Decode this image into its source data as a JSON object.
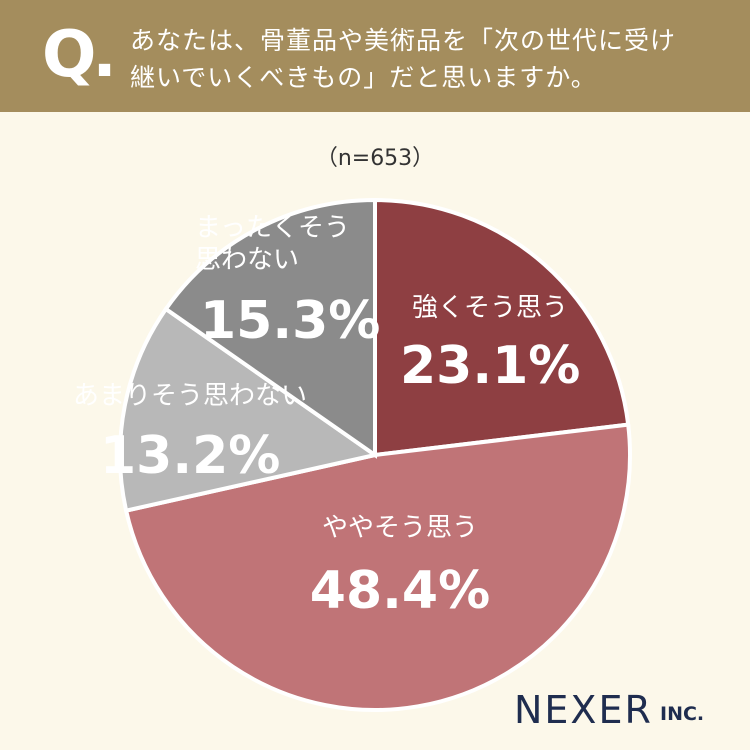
{
  "header": {
    "mark": "Q.",
    "question": "あなたは、骨董品や美術品を「次の世代に受け継いでいくべきもの」だと思いますか。"
  },
  "chart_data": {
    "type": "pie",
    "subtitle": "（n=653）",
    "categories": [
      "強くそう思う",
      "ややそう思う",
      "あまりそう思わない",
      "まったくそう思わない"
    ],
    "values": [
      23.1,
      48.4,
      13.2,
      15.3
    ],
    "value_labels": [
      "23.1%",
      "48.4%",
      "13.2%",
      "15.3%"
    ],
    "colors": [
      "#8e3f42",
      "#c07477",
      "#b8b8b8",
      "#8b8b8b"
    ]
  },
  "footer": {
    "brand": "NEXER",
    "suffix": "INC."
  }
}
